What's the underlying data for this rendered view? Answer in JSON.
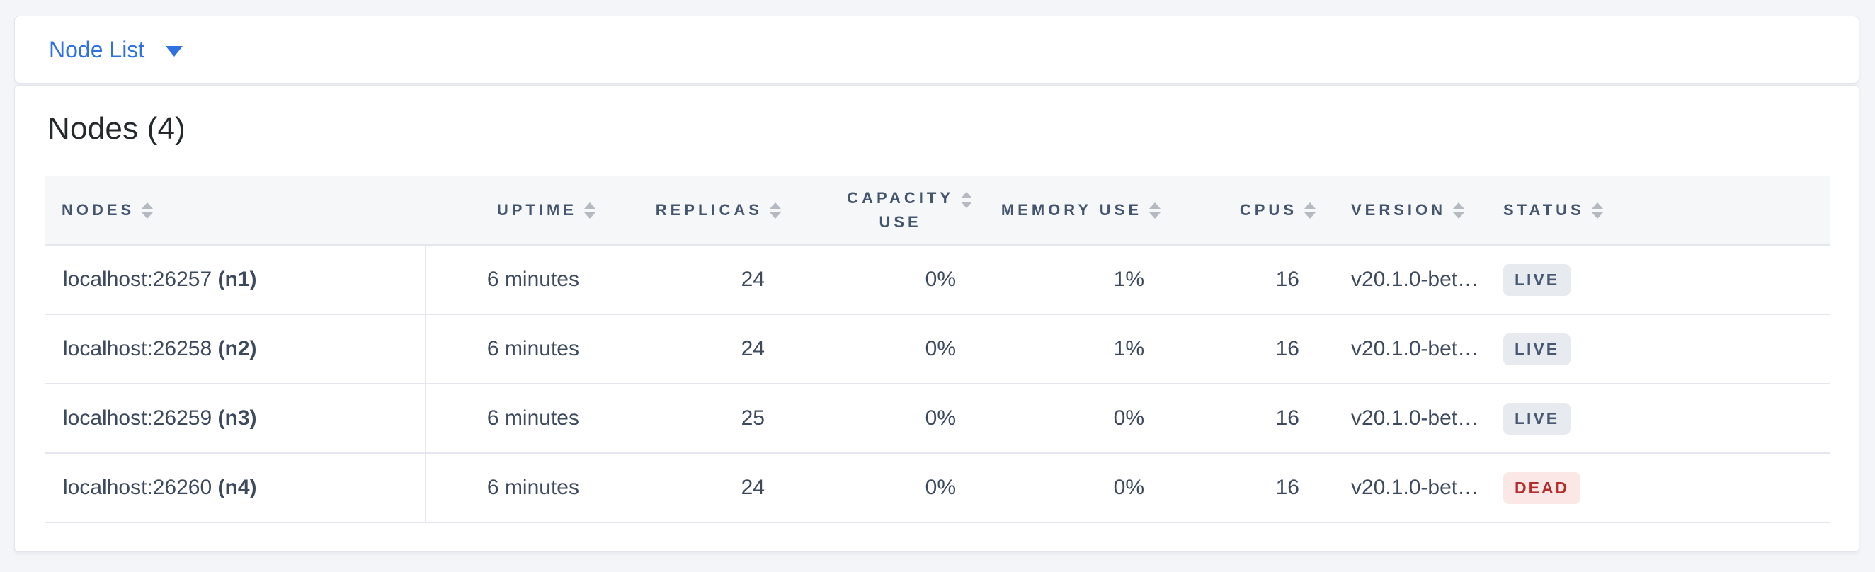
{
  "view_selector": {
    "label": "Node List"
  },
  "summary": {
    "title": "Nodes (4)"
  },
  "table": {
    "columns": [
      {
        "key": "nodes",
        "label": "NODES",
        "align": "left"
      },
      {
        "key": "uptime",
        "label": "UPTIME",
        "align": "right"
      },
      {
        "key": "replicas",
        "label": "REPLICAS",
        "align": "right"
      },
      {
        "key": "capacity_use",
        "label": "CAPACITY USE",
        "label_lines": [
          "CAPACITY",
          "USE"
        ],
        "align": "right"
      },
      {
        "key": "memory_use",
        "label": "MEMORY USE",
        "align": "right"
      },
      {
        "key": "cpus",
        "label": "CPUS",
        "align": "right"
      },
      {
        "key": "version",
        "label": "VERSION",
        "align": "left"
      },
      {
        "key": "status",
        "label": "STATUS",
        "align": "left"
      }
    ],
    "rows": [
      {
        "address": "localhost:26257",
        "node_id": "(n1)",
        "uptime": "6 minutes",
        "replicas": "24",
        "capacity_use": "0%",
        "memory_use": "1%",
        "cpus": "16",
        "version": "v20.1.0-bet…",
        "status": "LIVE"
      },
      {
        "address": "localhost:26258",
        "node_id": "(n2)",
        "uptime": "6 minutes",
        "replicas": "24",
        "capacity_use": "0%",
        "memory_use": "1%",
        "cpus": "16",
        "version": "v20.1.0-bet…",
        "status": "LIVE"
      },
      {
        "address": "localhost:26259",
        "node_id": "(n3)",
        "uptime": "6 minutes",
        "replicas": "25",
        "capacity_use": "0%",
        "memory_use": "0%",
        "cpus": "16",
        "version": "v20.1.0-bet…",
        "status": "LIVE"
      },
      {
        "address": "localhost:26260",
        "node_id": "(n4)",
        "uptime": "6 minutes",
        "replicas": "24",
        "capacity_use": "0%",
        "memory_use": "0%",
        "cpus": "16",
        "version": "v20.1.0-bet…",
        "status": "DEAD"
      }
    ]
  },
  "colors": {
    "accent_blue": "#2f71e3",
    "page_background": "#f4f5f9",
    "header_text": "#44556e",
    "cell_text": "#3d4a5d",
    "live_badge_bg": "#e7eaef",
    "live_badge_text": "#475872",
    "dead_badge_bg": "#fbe7e6",
    "dead_badge_text": "#b42d2d"
  }
}
